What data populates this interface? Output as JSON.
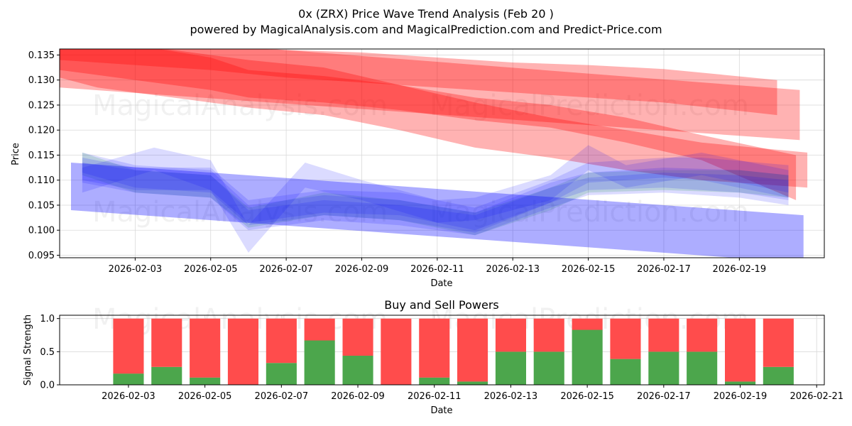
{
  "title": "0x (ZRX) Price Wave Trend Analysis (Feb 20 )",
  "subtitle": "powered by MagicalAnalysis.com and MagicalPrediction.com and Predict-Price.com",
  "watermarks": [
    "MagicalAnalysis.com",
    "MagicalPrediction.com"
  ],
  "colors": {
    "red_band": "#ff0000",
    "blue_band": "#0000ff",
    "green_band": "#00aa00",
    "buy": "#4ca64c",
    "sell": "#ff4c4c"
  },
  "chart_data": [
    {
      "type": "area",
      "title": "",
      "xlabel": "Date",
      "ylabel": "Price",
      "xlim": [
        "2026-02-01T00:00",
        "2026-02-21T06:00"
      ],
      "ylim": [
        0.0945,
        0.1362
      ],
      "yticks": [
        "0.095",
        "0.100",
        "0.105",
        "0.110",
        "0.115",
        "0.120",
        "0.125",
        "0.130",
        "0.135"
      ],
      "xticks": [
        "2026-02-03",
        "2026-02-05",
        "2026-02-07",
        "2026-02-09",
        "2026-02-11",
        "2026-02-13",
        "2026-02-15",
        "2026-02-17",
        "2026-02-19"
      ],
      "red_bands": [
        {
          "x": [
            "2026-02-01",
            "2026-02-20.6"
          ],
          "upper": [
            0.1395,
            0.128
          ],
          "lower": [
            0.1285,
            0.118
          ]
        },
        {
          "x": [
            "2026-02-01",
            "2026-02-03",
            "2026-02-05",
            "2026-02-06",
            "2026-02-08",
            "2026-02-10",
            "2026-02-12",
            "2026-02-14",
            "2026-02-16",
            "2026-02-18",
            "2026-02-20.5"
          ],
          "upper": [
            0.1395,
            0.137,
            0.1345,
            0.132,
            0.1308,
            0.129,
            0.1265,
            0.125,
            0.1225,
            0.119,
            0.115
          ],
          "lower": [
            0.132,
            0.13,
            0.128,
            0.1265,
            0.1255,
            0.124,
            0.122,
            0.1205,
            0.1175,
            0.114,
            0.106
          ]
        },
        {
          "x": [
            "2026-02-01",
            "2026-02-02",
            "2026-02-04",
            "2026-02-06",
            "2026-02-08",
            "2026-02-10",
            "2026-02-12",
            "2026-02-14",
            "2026-02-16",
            "2026-02-18",
            "2026-02-20.8"
          ],
          "upper": [
            0.139,
            0.138,
            0.136,
            0.134,
            0.1325,
            0.129,
            0.1255,
            0.1225,
            0.12,
            0.1175,
            0.1155
          ],
          "lower": [
            0.1305,
            0.1285,
            0.1265,
            0.1245,
            0.123,
            0.12,
            0.1165,
            0.1145,
            0.112,
            0.11,
            0.1085
          ]
        },
        {
          "x": [
            "2026-02-01",
            "2026-02-03",
            "2026-02-05",
            "2026-02-07",
            "2026-02-09",
            "2026-02-11",
            "2026-02-13",
            "2026-02-15",
            "2026-02-17",
            "2026-02-20"
          ],
          "upper": [
            0.138,
            0.1375,
            0.1365,
            0.136,
            0.1355,
            0.1345,
            0.1335,
            0.133,
            0.1322,
            0.13
          ],
          "lower": [
            0.134,
            0.133,
            0.132,
            0.1305,
            0.1295,
            0.1285,
            0.1275,
            0.1265,
            0.1255,
            0.123
          ]
        }
      ],
      "blue_bands": [
        {
          "x": [
            "2026-02-01.3",
            "2026-02-20.7"
          ],
          "upper": [
            0.1135,
            0.103
          ],
          "lower": [
            0.104,
            0.0935
          ]
        },
        {
          "x": [
            "2026-02-01.6",
            "2026-02-03",
            "2026-02-05",
            "2026-02-06",
            "2026-02-08",
            "2026-02-10",
            "2026-02-12",
            "2026-02-14",
            "2026-02-15",
            "2026-02-17",
            "2026-02-18",
            "2026-02-20.3"
          ],
          "upper": [
            0.1145,
            0.1125,
            0.1125,
            0.106,
            0.108,
            0.1075,
            0.1045,
            0.11,
            0.1135,
            0.1145,
            0.1145,
            0.113
          ],
          "lower": [
            0.11,
            0.108,
            0.108,
            0.1015,
            0.1035,
            0.103,
            0.1,
            0.1055,
            0.1095,
            0.1105,
            0.11,
            0.1065
          ]
        },
        {
          "x": [
            "2026-02-01.6",
            "2026-02-03.5",
            "2026-02-05",
            "2026-02-06",
            "2026-02-07.5",
            "2026-02-09",
            "2026-02-11",
            "2026-02-12",
            "2026-02-14",
            "2026-02-15",
            "2026-02-16",
            "2026-02-18",
            "2026-02-20.3"
          ],
          "upper": [
            0.1125,
            0.1165,
            0.114,
            0.101,
            0.1135,
            0.11,
            0.106,
            0.1065,
            0.111,
            0.117,
            0.113,
            0.1155,
            0.112
          ],
          "lower": [
            0.1075,
            0.112,
            0.108,
            0.0955,
            0.1085,
            0.106,
            0.1015,
            0.102,
            0.106,
            0.112,
            0.1085,
            0.111,
            0.1075
          ]
        },
        {
          "x": [
            "2026-02-01.6",
            "2026-02-03",
            "2026-02-05",
            "2026-02-06",
            "2026-02-08",
            "2026-02-10",
            "2026-02-12",
            "2026-02-14",
            "2026-02-15",
            "2026-02-17",
            "2026-02-19",
            "2026-02-20.3"
          ],
          "upper": [
            0.1155,
            0.113,
            0.112,
            0.105,
            0.107,
            0.106,
            0.1035,
            0.1095,
            0.1115,
            0.1125,
            0.112,
            0.111
          ],
          "lower": [
            0.1115,
            0.1085,
            0.1075,
            0.101,
            0.103,
            0.102,
            0.0995,
            0.1055,
            0.108,
            0.1085,
            0.1075,
            0.106
          ]
        },
        {
          "x": [
            "2026-02-01.6",
            "2026-02-03",
            "2026-02-05",
            "2026-02-06",
            "2026-02-08",
            "2026-02-10",
            "2026-02-12",
            "2026-02-14",
            "2026-02-15",
            "2026-02-17",
            "2026-02-19",
            "2026-02-20.3"
          ],
          "upper": [
            0.1135,
            0.112,
            0.111,
            0.104,
            0.106,
            0.105,
            0.103,
            0.1085,
            0.1105,
            0.1115,
            0.111,
            0.11
          ],
          "lower": [
            0.1095,
            0.1075,
            0.1065,
            0.1,
            0.102,
            0.101,
            0.099,
            0.1045,
            0.107,
            0.1075,
            0.1065,
            0.105
          ]
        }
      ],
      "green_band": {
        "x": [
          "2026-02-01.6",
          "2026-02-03",
          "2026-02-05",
          "2026-02-06",
          "2026-02-08",
          "2026-02-10",
          "2026-02-12",
          "2026-02-14",
          "2026-02-15",
          "2026-02-17",
          "2026-02-19",
          "2026-02-20.3"
        ],
        "upper": [
          0.1155,
          0.112,
          0.111,
          0.1045,
          0.1075,
          0.106,
          0.1035,
          0.1085,
          0.1115,
          0.112,
          0.112,
          0.111
        ],
        "lower": [
          0.111,
          0.1075,
          0.1065,
          0.1005,
          0.103,
          0.102,
          0.099,
          0.104,
          0.1075,
          0.108,
          0.1075,
          0.1065
        ]
      }
    },
    {
      "type": "bar",
      "title": "Buy and Sell Powers",
      "xlabel": "Date",
      "ylabel": "Signal Strength",
      "xlim": [
        "2026-02-01.2",
        "2026-02-21.2"
      ],
      "ylim": [
        0,
        1.05
      ],
      "yticks": [
        "0.0",
        "0.5",
        "1.0"
      ],
      "xticks": [
        "2026-02-03",
        "2026-02-05",
        "2026-02-07",
        "2026-02-09",
        "2026-02-11",
        "2026-02-13",
        "2026-02-15",
        "2026-02-17",
        "2026-02-19",
        "2026-02-21"
      ],
      "categories": [
        "2026-02-03",
        "2026-02-04",
        "2026-02-05",
        "2026-02-06",
        "2026-02-07",
        "2026-02-08",
        "2026-02-09",
        "2026-02-10",
        "2026-02-11",
        "2026-02-12",
        "2026-02-13",
        "2026-02-14",
        "2026-02-15",
        "2026-02-16",
        "2026-02-17",
        "2026-02-18",
        "2026-02-19",
        "2026-02-20"
      ],
      "series": [
        {
          "name": "Buy",
          "values": [
            0.17,
            0.27,
            0.11,
            0.0,
            0.33,
            0.67,
            0.44,
            0.0,
            0.11,
            0.05,
            0.5,
            0.5,
            0.83,
            0.39,
            0.5,
            0.5,
            0.05,
            0.27
          ]
        },
        {
          "name": "Sell",
          "values": [
            0.83,
            0.73,
            0.89,
            1.0,
            0.67,
            0.33,
            0.56,
            1.0,
            0.89,
            0.95,
            0.5,
            0.5,
            0.17,
            0.61,
            0.5,
            0.5,
            0.95,
            0.73
          ]
        }
      ]
    }
  ]
}
